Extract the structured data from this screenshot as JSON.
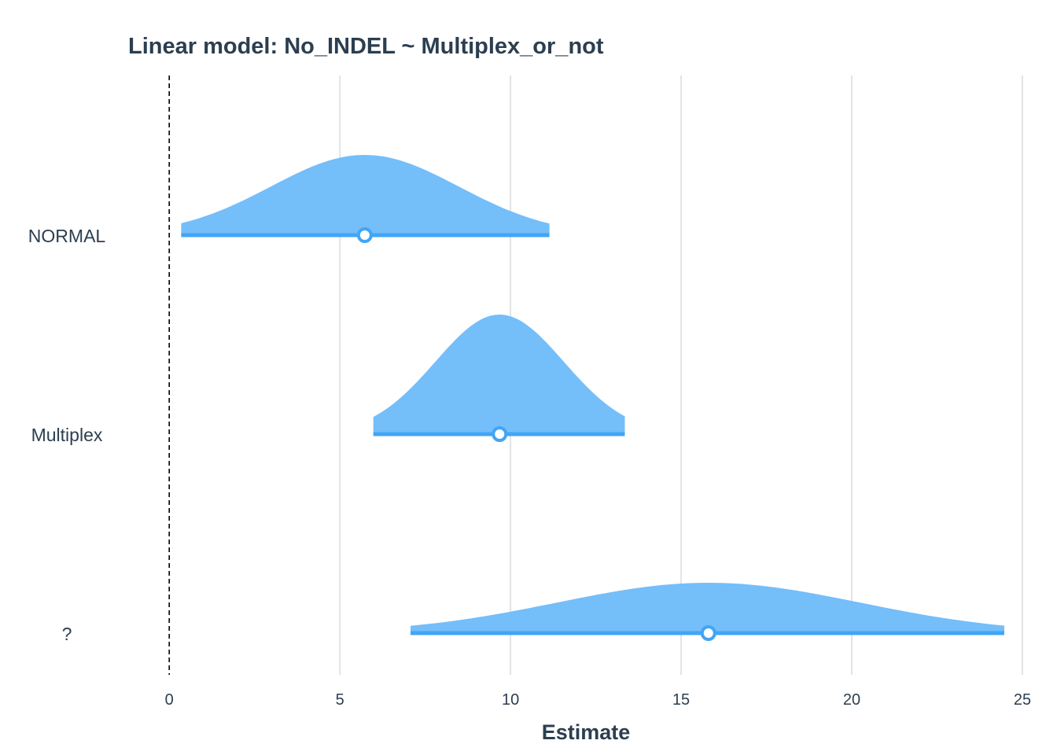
{
  "chart_data": {
    "type": "ridgeline",
    "title": "Linear model: No_INDEL ~ Multiplex_or_not",
    "xlabel": "Estimate",
    "ylabel": "",
    "xlim": [
      -0.35,
      25.3
    ],
    "xticks": [
      0,
      5,
      10,
      15,
      20,
      25
    ],
    "reference_line": 0,
    "grid": "vertical",
    "legend": "none",
    "colors": {
      "fill": "#74befa",
      "line": "#42a5f5",
      "point_fill": "#ffffff",
      "grid": "#e3e3e3",
      "reference": "#000000",
      "text": "#2c3e50"
    },
    "series": [
      {
        "name": "NORMAL",
        "estimate": 5.73,
        "ci_low": 0.35,
        "ci_high": 11.14
      },
      {
        "name": "Multiplex",
        "estimate": 9.68,
        "ci_low": 5.98,
        "ci_high": 13.35
      },
      {
        "name": "?",
        "estimate": 15.8,
        "ci_low": 7.07,
        "ci_high": 24.47
      }
    ]
  }
}
